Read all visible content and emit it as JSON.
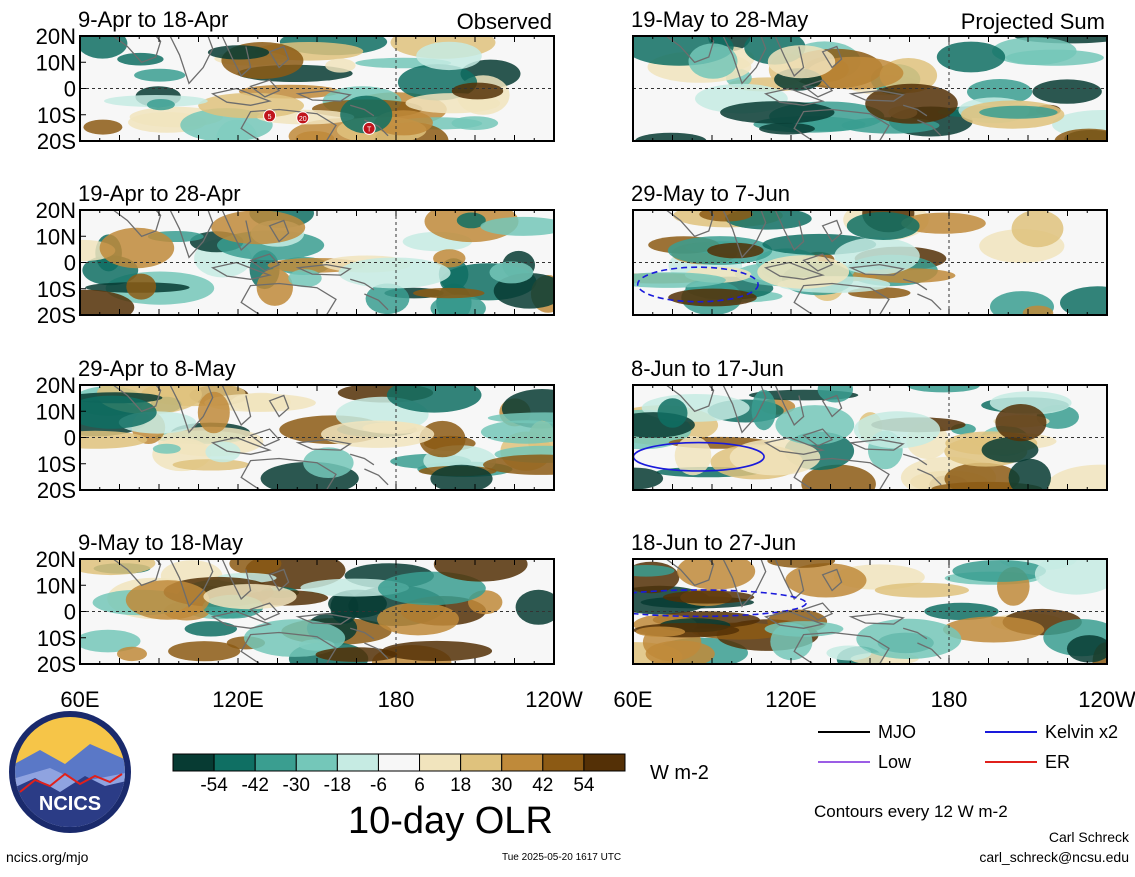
{
  "chart_data": {
    "type": "heatmap",
    "title": "10-day OLR",
    "column_titles": [
      "Observed",
      "Projected Sum"
    ],
    "panels": [
      {
        "column": 0,
        "row": 0,
        "period": "9-Apr to 18-Apr",
        "corner_label": "Observed",
        "seed": 11
      },
      {
        "column": 0,
        "row": 1,
        "period": "19-Apr to 28-Apr",
        "corner_label": "",
        "seed": 23
      },
      {
        "column": 0,
        "row": 2,
        "period": "29-Apr to 8-May",
        "corner_label": "",
        "seed": 37
      },
      {
        "column": 0,
        "row": 3,
        "period": "9-May to 18-May",
        "corner_label": "",
        "seed": 41
      },
      {
        "column": 1,
        "row": 0,
        "period": "19-May to 28-May",
        "corner_label": "Projected Sum",
        "seed": 53
      },
      {
        "column": 1,
        "row": 1,
        "period": "29-May to 7-Jun",
        "corner_label": "",
        "seed": 67
      },
      {
        "column": 1,
        "row": 2,
        "period": "8-Jun to 17-Jun",
        "corner_label": "",
        "seed": 79
      },
      {
        "column": 1,
        "row": 3,
        "period": "18-Jun to 27-Jun",
        "corner_label": "",
        "seed": 83
      }
    ],
    "y_ticks": [
      "20N",
      "10N",
      "0",
      "10S",
      "20S"
    ],
    "x_ticks": [
      "60E",
      "120E",
      "180",
      "120W"
    ],
    "colorbar": {
      "labels": [
        "-54",
        "-42",
        "-30",
        "-18",
        "-6",
        "6",
        "18",
        "30",
        "42",
        "54"
      ],
      "colors": [
        "#073b33",
        "#0f6f63",
        "#3a9e90",
        "#74c7b9",
        "#c6ebe3",
        "#f7f7f7",
        "#f1e4bd",
        "#dfc27d",
        "#bf8a3a",
        "#8c5a14",
        "#543006"
      ],
      "units": "W m-2"
    },
    "legend": [
      {
        "label": "MJO",
        "color": "#000000"
      },
      {
        "label": "Kelvin x2",
        "color": "#1a1adb"
      },
      {
        "label": "Low",
        "color": "#9b5de5"
      },
      {
        "label": "ER",
        "color": "#e0201b"
      }
    ],
    "contours_note": "Contours every 12 W m-2",
    "storm_labels": [
      "5",
      "20",
      "T"
    ]
  },
  "footer": {
    "site": "ncics.org/mjo",
    "timestamp": "Tue 2025-05-20 1617 UTC",
    "author": "Carl Schreck",
    "email": "carl_schreck@ncsu.edu"
  },
  "logo": {
    "text": "NCICS",
    "ring_color": "#1a2a6c",
    "sun_color": "#f6c548"
  }
}
